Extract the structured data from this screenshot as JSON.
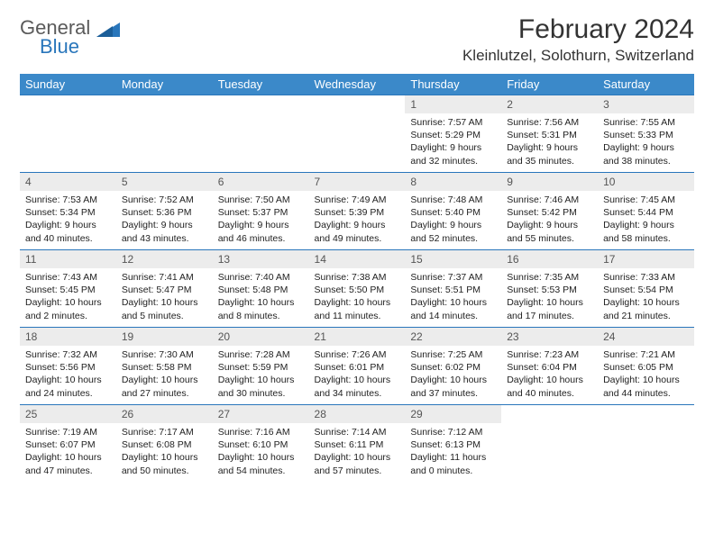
{
  "logo": {
    "text_general": "General",
    "text_blue": "Blue",
    "color_general": "#5a5a5a",
    "color_blue": "#2976bb"
  },
  "header": {
    "month_title": "February 2024",
    "location": "Kleinlutzel, Solothurn, Switzerland"
  },
  "theme": {
    "header_bg": "#3b89c9",
    "header_text": "#ffffff",
    "row_border": "#2976bb",
    "daynum_bg": "#ececec",
    "daynum_text": "#555555",
    "body_text": "#222222",
    "page_bg": "#ffffff"
  },
  "day_names": [
    "Sunday",
    "Monday",
    "Tuesday",
    "Wednesday",
    "Thursday",
    "Friday",
    "Saturday"
  ],
  "weeks": [
    [
      {
        "empty": true
      },
      {
        "empty": true
      },
      {
        "empty": true
      },
      {
        "empty": true
      },
      {
        "num": "1",
        "sunrise": "Sunrise: 7:57 AM",
        "sunset": "Sunset: 5:29 PM",
        "daylight": "Daylight: 9 hours and 32 minutes."
      },
      {
        "num": "2",
        "sunrise": "Sunrise: 7:56 AM",
        "sunset": "Sunset: 5:31 PM",
        "daylight": "Daylight: 9 hours and 35 minutes."
      },
      {
        "num": "3",
        "sunrise": "Sunrise: 7:55 AM",
        "sunset": "Sunset: 5:33 PM",
        "daylight": "Daylight: 9 hours and 38 minutes."
      }
    ],
    [
      {
        "num": "4",
        "sunrise": "Sunrise: 7:53 AM",
        "sunset": "Sunset: 5:34 PM",
        "daylight": "Daylight: 9 hours and 40 minutes."
      },
      {
        "num": "5",
        "sunrise": "Sunrise: 7:52 AM",
        "sunset": "Sunset: 5:36 PM",
        "daylight": "Daylight: 9 hours and 43 minutes."
      },
      {
        "num": "6",
        "sunrise": "Sunrise: 7:50 AM",
        "sunset": "Sunset: 5:37 PM",
        "daylight": "Daylight: 9 hours and 46 minutes."
      },
      {
        "num": "7",
        "sunrise": "Sunrise: 7:49 AM",
        "sunset": "Sunset: 5:39 PM",
        "daylight": "Daylight: 9 hours and 49 minutes."
      },
      {
        "num": "8",
        "sunrise": "Sunrise: 7:48 AM",
        "sunset": "Sunset: 5:40 PM",
        "daylight": "Daylight: 9 hours and 52 minutes."
      },
      {
        "num": "9",
        "sunrise": "Sunrise: 7:46 AM",
        "sunset": "Sunset: 5:42 PM",
        "daylight": "Daylight: 9 hours and 55 minutes."
      },
      {
        "num": "10",
        "sunrise": "Sunrise: 7:45 AM",
        "sunset": "Sunset: 5:44 PM",
        "daylight": "Daylight: 9 hours and 58 minutes."
      }
    ],
    [
      {
        "num": "11",
        "sunrise": "Sunrise: 7:43 AM",
        "sunset": "Sunset: 5:45 PM",
        "daylight": "Daylight: 10 hours and 2 minutes."
      },
      {
        "num": "12",
        "sunrise": "Sunrise: 7:41 AM",
        "sunset": "Sunset: 5:47 PM",
        "daylight": "Daylight: 10 hours and 5 minutes."
      },
      {
        "num": "13",
        "sunrise": "Sunrise: 7:40 AM",
        "sunset": "Sunset: 5:48 PM",
        "daylight": "Daylight: 10 hours and 8 minutes."
      },
      {
        "num": "14",
        "sunrise": "Sunrise: 7:38 AM",
        "sunset": "Sunset: 5:50 PM",
        "daylight": "Daylight: 10 hours and 11 minutes."
      },
      {
        "num": "15",
        "sunrise": "Sunrise: 7:37 AM",
        "sunset": "Sunset: 5:51 PM",
        "daylight": "Daylight: 10 hours and 14 minutes."
      },
      {
        "num": "16",
        "sunrise": "Sunrise: 7:35 AM",
        "sunset": "Sunset: 5:53 PM",
        "daylight": "Daylight: 10 hours and 17 minutes."
      },
      {
        "num": "17",
        "sunrise": "Sunrise: 7:33 AM",
        "sunset": "Sunset: 5:54 PM",
        "daylight": "Daylight: 10 hours and 21 minutes."
      }
    ],
    [
      {
        "num": "18",
        "sunrise": "Sunrise: 7:32 AM",
        "sunset": "Sunset: 5:56 PM",
        "daylight": "Daylight: 10 hours and 24 minutes."
      },
      {
        "num": "19",
        "sunrise": "Sunrise: 7:30 AM",
        "sunset": "Sunset: 5:58 PM",
        "daylight": "Daylight: 10 hours and 27 minutes."
      },
      {
        "num": "20",
        "sunrise": "Sunrise: 7:28 AM",
        "sunset": "Sunset: 5:59 PM",
        "daylight": "Daylight: 10 hours and 30 minutes."
      },
      {
        "num": "21",
        "sunrise": "Sunrise: 7:26 AM",
        "sunset": "Sunset: 6:01 PM",
        "daylight": "Daylight: 10 hours and 34 minutes."
      },
      {
        "num": "22",
        "sunrise": "Sunrise: 7:25 AM",
        "sunset": "Sunset: 6:02 PM",
        "daylight": "Daylight: 10 hours and 37 minutes."
      },
      {
        "num": "23",
        "sunrise": "Sunrise: 7:23 AM",
        "sunset": "Sunset: 6:04 PM",
        "daylight": "Daylight: 10 hours and 40 minutes."
      },
      {
        "num": "24",
        "sunrise": "Sunrise: 7:21 AM",
        "sunset": "Sunset: 6:05 PM",
        "daylight": "Daylight: 10 hours and 44 minutes."
      }
    ],
    [
      {
        "num": "25",
        "sunrise": "Sunrise: 7:19 AM",
        "sunset": "Sunset: 6:07 PM",
        "daylight": "Daylight: 10 hours and 47 minutes."
      },
      {
        "num": "26",
        "sunrise": "Sunrise: 7:17 AM",
        "sunset": "Sunset: 6:08 PM",
        "daylight": "Daylight: 10 hours and 50 minutes."
      },
      {
        "num": "27",
        "sunrise": "Sunrise: 7:16 AM",
        "sunset": "Sunset: 6:10 PM",
        "daylight": "Daylight: 10 hours and 54 minutes."
      },
      {
        "num": "28",
        "sunrise": "Sunrise: 7:14 AM",
        "sunset": "Sunset: 6:11 PM",
        "daylight": "Daylight: 10 hours and 57 minutes."
      },
      {
        "num": "29",
        "sunrise": "Sunrise: 7:12 AM",
        "sunset": "Sunset: 6:13 PM",
        "daylight": "Daylight: 11 hours and 0 minutes."
      },
      {
        "empty": true
      },
      {
        "empty": true
      }
    ]
  ]
}
